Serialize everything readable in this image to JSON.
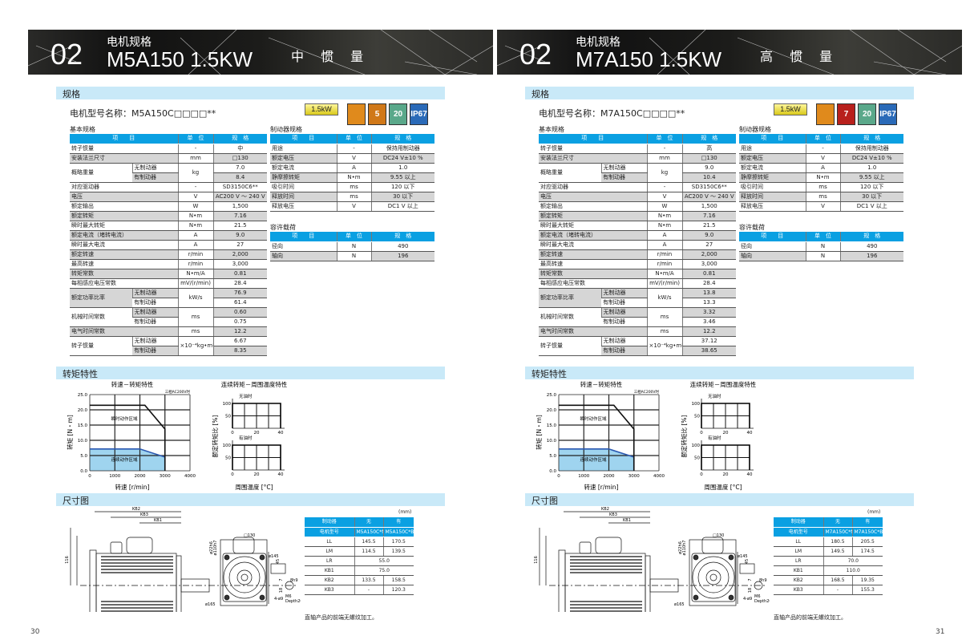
{
  "pages": [
    {
      "header": {
        "number": "02",
        "subtitle": "电机规格",
        "model": "M5A150 1.5KW",
        "inertia": "中 惯 量"
      },
      "sections": {
        "spec": "规格",
        "torque": "转矩特性",
        "dims": "尺寸图"
      },
      "model_name": "电机型号名称：M5A150C□□□□**",
      "badge": "1.5kW",
      "icons": [
        {
          "name": "encoder-icon",
          "text": "",
          "color": "#e08a1c"
        },
        {
          "name": "voltage-5-icon",
          "text": "5",
          "color": "#d07818"
        },
        {
          "name": "temperature-icon",
          "text": "20",
          "color": "#5aa88a"
        },
        {
          "name": "ip67-icon",
          "text": "IP67",
          "color": "#2a6ab8"
        }
      ],
      "basic_label": "基本规格",
      "header_cells": [
        "项　　目",
        "单　位",
        "规　格"
      ],
      "basic": [
        {
          "item": "转子惯量",
          "unit": "-",
          "value": "中",
          "g": 0
        },
        {
          "item": "安装法兰尺寸",
          "unit": "mm",
          "value": "□130",
          "g": 1
        },
        {
          "item": "概略重量",
          "unit": "kg",
          "subs": [
            {
              "label": "无制动器",
              "value": "7.0",
              "g": 0
            },
            {
              "label": "有制动器",
              "value": "8.4",
              "g": 1
            }
          ],
          "g": 0
        },
        {
          "item": "对应驱动器",
          "unit": "-",
          "value": "SD3150C6**",
          "g": 0
        },
        {
          "item": "电压",
          "unit": "V",
          "value": "AC200 V ～ 240 V",
          "g": 1
        },
        {
          "item": "额定输出",
          "unit": "W",
          "value": "1,500",
          "g": 0
        },
        {
          "item": "额定转矩",
          "unit": "N•m",
          "value": "7.16",
          "g": 1
        },
        {
          "item": "瞬时最大转矩",
          "unit": "N•m",
          "value": "21.5",
          "g": 0
        },
        {
          "item": "额定电流（堵转电流）",
          "unit": "A",
          "value": "9.0",
          "g": 1
        },
        {
          "item": "瞬时最大电流",
          "unit": "A",
          "value": "27",
          "g": 0
        },
        {
          "item": "额定转速",
          "unit": "r/min",
          "value": "2,000",
          "g": 1
        },
        {
          "item": "最高转速",
          "unit": "r/min",
          "value": "3,000",
          "g": 0
        },
        {
          "item": "转矩常数",
          "unit": "N•m/A",
          "value": "0.81",
          "g": 1
        },
        {
          "item": "每相感应电压常数",
          "unit": "mV/(r/min)",
          "value": "28.4",
          "g": 0
        },
        {
          "item": "额定功率比率",
          "unit": "kW/s",
          "subs": [
            {
              "label": "无制动器",
              "value": "76.9",
              "g": 1
            },
            {
              "label": "有制动器",
              "value": "61.4",
              "g": 0
            }
          ],
          "g": 1
        },
        {
          "item": "机械时间常数",
          "unit": "ms",
          "subs": [
            {
              "label": "无制动器",
              "value": "0.60",
              "g": 1
            },
            {
              "label": "有制动器",
              "value": "0.75",
              "g": 0
            }
          ],
          "g": 0
        },
        {
          "item": "电气时间常数",
          "unit": "ms",
          "value": "12.2",
          "g": 1
        },
        {
          "item": "转子惯量",
          "unit": "×10⁻⁴kg•m²",
          "subs": [
            {
              "label": "无制动器",
              "value": "6.67",
              "g": 0
            },
            {
              "label": "有制动器",
              "value": "8.35",
              "g": 1
            }
          ],
          "g": 0
        }
      ],
      "brake_label": "制动器规格",
      "brake": [
        {
          "item": "用途",
          "unit": "-",
          "value": "保持用制动器",
          "g": 0
        },
        {
          "item": "额定电压",
          "unit": "V",
          "value": "DC24 V±10 %",
          "g": 1
        },
        {
          "item": "额定电流",
          "unit": "A",
          "value": "1.0",
          "g": 0
        },
        {
          "item": "静摩擦转矩",
          "unit": "N•m",
          "value": "9.55 以上",
          "g": 1
        },
        {
          "item": "吸引时间",
          "unit": "ms",
          "value": "120 以下",
          "g": 0
        },
        {
          "item": "释放时间",
          "unit": "ms",
          "value": "30 以下",
          "g": 1
        },
        {
          "item": "释放电压",
          "unit": "V",
          "value": "DC1 V 以上",
          "g": 0
        }
      ],
      "load_label": "容许载荷",
      "load": [
        {
          "item": "径向",
          "unit": "N",
          "value": "490",
          "g": 0
        },
        {
          "item": "轴向",
          "unit": "N",
          "value": "196",
          "g": 1
        }
      ],
      "dims": {
        "unit": "(mm)",
        "head1": [
          "制动器",
          "无",
          "有"
        ],
        "head2": [
          "电机型号",
          "M5A150C*N",
          "M5A150C*B"
        ],
        "rows": [
          [
            "LL",
            "145.5",
            "170.5"
          ],
          [
            "LM",
            "114.5",
            "139.5"
          ],
          [
            "LR",
            "55.0"
          ],
          [
            "KB1",
            "75.0"
          ],
          [
            "KB2",
            "133.5",
            "158.5"
          ],
          [
            "KB3",
            "-",
            "120.3"
          ]
        ],
        "note": "直轴产品的前端无螺纹加工。"
      },
      "drawing_labels": [
        "KB2",
        "KB3",
        "KB1",
        "116",
        "LL",
        "LM",
        "LR",
        "31",
        "12",
        "3",
        "□130",
        "ø145",
        "ø165",
        "4-ø9",
        "M8(L≥18mm)",
        "M6",
        "Depth20",
        "(mm)",
        "ø22h6",
        "ø110h7",
        "8h9",
        "45",
        "7",
        "18"
      ],
      "page_number": "30"
    },
    {
      "header": {
        "number": "02",
        "subtitle": "电机规格",
        "model": "M7A150 1.5KW",
        "inertia": "高 惯 量"
      },
      "sections": {
        "spec": "规格",
        "torque": "转矩特性",
        "dims": "尺寸图"
      },
      "model_name": "电机型号名称：M7A150C□□□□**",
      "badge": "1.5kW",
      "icons": [
        {
          "name": "encoder-icon",
          "text": "",
          "color": "#e08a1c"
        },
        {
          "name": "voltage-7-icon",
          "text": "7",
          "color": "#b8201c"
        },
        {
          "name": "temperature-icon",
          "text": "20",
          "color": "#5aa88a"
        },
        {
          "name": "ip67-icon",
          "text": "IP67",
          "color": "#2a6ab8"
        }
      ],
      "basic_label": "基本规格",
      "header_cells": [
        "项　　目",
        "单　位",
        "规　格"
      ],
      "basic": [
        {
          "item": "转子惯量",
          "unit": "-",
          "value": "高",
          "g": 0
        },
        {
          "item": "安装法兰尺寸",
          "unit": "mm",
          "value": "□130",
          "g": 1
        },
        {
          "item": "概略重量",
          "unit": "kg",
          "subs": [
            {
              "label": "无制动器",
              "value": "9.0",
              "g": 0
            },
            {
              "label": "有制动器",
              "value": "10.4",
              "g": 1
            }
          ],
          "g": 0
        },
        {
          "item": "对应驱动器",
          "unit": "-",
          "value": "SD3150C6**",
          "g": 0
        },
        {
          "item": "电压",
          "unit": "V",
          "value": "AC200 V ～ 240 V",
          "g": 1
        },
        {
          "item": "额定输出",
          "unit": "W",
          "value": "1,500",
          "g": 0
        },
        {
          "item": "额定转矩",
          "unit": "N•m",
          "value": "7.16",
          "g": 1
        },
        {
          "item": "瞬时最大转矩",
          "unit": "N•m",
          "value": "21.5",
          "g": 0
        },
        {
          "item": "额定电流（堵转电流）",
          "unit": "A",
          "value": "9.0",
          "g": 1
        },
        {
          "item": "瞬时最大电流",
          "unit": "A",
          "value": "27",
          "g": 0
        },
        {
          "item": "额定转速",
          "unit": "r/min",
          "value": "2,000",
          "g": 1
        },
        {
          "item": "最高转速",
          "unit": "r/min",
          "value": "3,000",
          "g": 0
        },
        {
          "item": "转矩常数",
          "unit": "N•m/A",
          "value": "0.81",
          "g": 1
        },
        {
          "item": "每相感应电压常数",
          "unit": "mV/(r/min)",
          "value": "28.4",
          "g": 0
        },
        {
          "item": "额定功率比率",
          "unit": "kW/s",
          "subs": [
            {
              "label": "无制动器",
              "value": "13.8",
              "g": 1
            },
            {
              "label": "有制动器",
              "value": "13.3",
              "g": 0
            }
          ],
          "g": 1
        },
        {
          "item": "机械时间常数",
          "unit": "ms",
          "subs": [
            {
              "label": "无制动器",
              "value": "3.32",
              "g": 1
            },
            {
              "label": "有制动器",
              "value": "3.46",
              "g": 0
            }
          ],
          "g": 0
        },
        {
          "item": "电气时间常数",
          "unit": "ms",
          "value": "12.2",
          "g": 1
        },
        {
          "item": "转子惯量",
          "unit": "×10⁻⁴kg•m²",
          "subs": [
            {
              "label": "无制动器",
              "value": "37.12",
              "g": 0
            },
            {
              "label": "有制动器",
              "value": "38.65",
              "g": 1
            }
          ],
          "g": 0
        }
      ],
      "brake_label": "制动器规格",
      "brake": [
        {
          "item": "用途",
          "unit": "-",
          "value": "保持用制动器",
          "g": 0
        },
        {
          "item": "额定电压",
          "unit": "V",
          "value": "DC24 V±10 %",
          "g": 1
        },
        {
          "item": "额定电流",
          "unit": "A",
          "value": "1.0",
          "g": 0
        },
        {
          "item": "静摩擦转矩",
          "unit": "N•m",
          "value": "9.55 以上",
          "g": 1
        },
        {
          "item": "吸引时间",
          "unit": "ms",
          "value": "120 以下",
          "g": 0
        },
        {
          "item": "释放时间",
          "unit": "ms",
          "value": "30 以下",
          "g": 1
        },
        {
          "item": "释放电压",
          "unit": "V",
          "value": "DC1 V 以上",
          "g": 0
        }
      ],
      "load_label": "容许载荷",
      "load": [
        {
          "item": "径向",
          "unit": "N",
          "value": "490",
          "g": 0
        },
        {
          "item": "轴向",
          "unit": "N",
          "value": "196",
          "g": 1
        }
      ],
      "dims": {
        "unit": "(mm)",
        "head1": [
          "制动器",
          "无",
          "有"
        ],
        "head2": [
          "电机型号",
          "M7A150C*N",
          "M7A150C*B"
        ],
        "rows": [
          [
            "LL",
            "180.5",
            "205.5"
          ],
          [
            "LM",
            "149.5",
            "174.5"
          ],
          [
            "LR",
            "70.0"
          ],
          [
            "KB1",
            "110.0"
          ],
          [
            "KB2",
            "168.5",
            "19.35"
          ],
          [
            "KB3",
            "-",
            "155.3"
          ]
        ],
        "note": "直轴产品的前端无螺纹加工。"
      },
      "drawing_labels": [
        "KB2",
        "KB3",
        "KB1",
        "116",
        "LL",
        "LM",
        "LR",
        "31",
        "12",
        "3",
        "□130",
        "ø145",
        "ø165",
        "4-ø9",
        "M8(L≥18mm)",
        "M6",
        "Depth20",
        "(mm)",
        "ø22h6",
        "ø110h7",
        "8h9",
        "45",
        "7",
        "18"
      ],
      "page_number": "31"
    }
  ],
  "chart_data": [
    {
      "type": "line",
      "title": "转速－转矩特性",
      "note": "三相AC200V时",
      "xlabel": "转速 [r/min]",
      "ylabel": "转矩 [N・m]",
      "xlim": [
        0,
        4000
      ],
      "ylim": [
        0,
        25
      ],
      "xticks": [
        "0",
        "1000",
        "2000",
        "3000",
        "4000"
      ],
      "yticks": [
        "0.0",
        "5.0",
        "10.0",
        "15.0",
        "20.0",
        "25.0"
      ],
      "grid": true,
      "series": [
        {
          "name": "瞬时动作区域",
          "x": [
            0,
            2200,
            3000,
            3000
          ],
          "y": [
            21.5,
            21.5,
            13.7,
            0
          ],
          "color": "#111111"
        },
        {
          "name": "连续动作区域",
          "x": [
            0,
            2000,
            3000,
            3000
          ],
          "y": [
            7.16,
            7.16,
            4.5,
            0
          ],
          "color": "#2a58b0",
          "fill": "#9fd4ef"
        }
      ]
    },
    {
      "type": "line",
      "title": "连续转矩－周围温度特性",
      "xlabel": "周围温度 [°C]",
      "ylabel": "额定转矩比 [%]",
      "xlim": [
        0,
        40
      ],
      "ylim": [
        0,
        100
      ],
      "xticks": [
        "0",
        "20",
        "40"
      ],
      "yticks": [
        "50",
        "100"
      ],
      "grid": true,
      "series": [
        {
          "name": "无油时",
          "x": [
            0,
            40
          ],
          "y": [
            100,
            100
          ]
        },
        {
          "name": "有油时",
          "x": [
            0,
            40
          ],
          "y": [
            100,
            100
          ]
        }
      ]
    },
    {
      "type": "line",
      "title": "转速－转矩特性",
      "note": "三相AC200V时",
      "xlabel": "转速 [r/min]",
      "ylabel": "转矩 [N・m]",
      "xlim": [
        0,
        4000
      ],
      "ylim": [
        0,
        25
      ],
      "xticks": [
        "0",
        "1000",
        "2000",
        "3000",
        "4000"
      ],
      "yticks": [
        "0.0",
        "5.0",
        "10.0",
        "15.0",
        "20.0",
        "25.0"
      ],
      "grid": true,
      "series": [
        {
          "name": "瞬时动作区域",
          "x": [
            0,
            2200,
            3000,
            3000
          ],
          "y": [
            21.5,
            21.5,
            13.7,
            0
          ],
          "color": "#111111"
        },
        {
          "name": "连续动作区域",
          "x": [
            0,
            2000,
            3000,
            3000
          ],
          "y": [
            7.16,
            7.16,
            4.5,
            0
          ],
          "color": "#2a58b0",
          "fill": "#9fd4ef"
        }
      ]
    },
    {
      "type": "line",
      "title": "连续转矩－周围温度特性",
      "xlabel": "周围温度 [°C]",
      "ylabel": "额定转矩比 [%]",
      "xlim": [
        0,
        40
      ],
      "ylim": [
        0,
        100
      ],
      "xticks": [
        "0",
        "20",
        "40"
      ],
      "yticks": [
        "50",
        "100"
      ],
      "grid": true,
      "series": [
        {
          "name": "无油时",
          "x": [
            0,
            40
          ],
          "y": [
            100,
            100
          ]
        },
        {
          "name": "有油时",
          "x": [
            0,
            40
          ],
          "y": [
            100,
            100
          ]
        }
      ]
    }
  ]
}
